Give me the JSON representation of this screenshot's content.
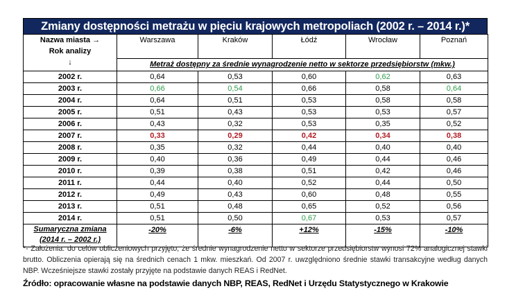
{
  "title": "Zmiany dostępności metrażu w pięciu krajowych metropoliach (2002 r. – 2014 r.)*",
  "header": {
    "corner_line1": "Nazwa miasta →",
    "corner_line2": "Rok analizy",
    "corner_arrow": "↓",
    "cities": [
      "Warszawa",
      "Kraków",
      "Łódź",
      "Wrocław",
      "Poznań"
    ],
    "subtitle": "Metraż dostępny za średnie wynagrodzenie netto w sektorze przedsiębiorstw (mkw.)"
  },
  "rows": [
    {
      "year": "2002 r.",
      "values": [
        "0,64",
        "0,53",
        "0,60",
        "0,62",
        "0,63"
      ],
      "styles": [
        "",
        "",
        "",
        "green",
        ""
      ]
    },
    {
      "year": "2003 r.",
      "values": [
        "0,66",
        "0,54",
        "0,66",
        "0,58",
        "0,64"
      ],
      "styles": [
        "green",
        "green",
        "",
        "",
        "green"
      ]
    },
    {
      "year": "2004 r.",
      "values": [
        "0,64",
        "0,51",
        "0,53",
        "0,58",
        "0,58"
      ],
      "styles": [
        "",
        "",
        "",
        "",
        ""
      ]
    },
    {
      "year": "2005 r.",
      "values": [
        "0,51",
        "0,43",
        "0,53",
        "0,53",
        "0,57"
      ],
      "styles": [
        "",
        "",
        "",
        "",
        ""
      ]
    },
    {
      "year": "2006 r.",
      "values": [
        "0,43",
        "0,32",
        "0,53",
        "0,35",
        "0,52"
      ],
      "styles": [
        "",
        "",
        "",
        "",
        ""
      ]
    },
    {
      "year": "2007 r.",
      "values": [
        "0,33",
        "0,29",
        "0,42",
        "0,34",
        "0,38"
      ],
      "styles": [
        "red",
        "red",
        "red",
        "red",
        "red"
      ]
    },
    {
      "year": "2008 r.",
      "values": [
        "0,35",
        "0,32",
        "0,44",
        "0,40",
        "0,40"
      ],
      "styles": [
        "",
        "",
        "",
        "",
        ""
      ]
    },
    {
      "year": "2009 r.",
      "values": [
        "0,40",
        "0,36",
        "0,49",
        "0,44",
        "0,46"
      ],
      "styles": [
        "",
        "",
        "",
        "",
        ""
      ]
    },
    {
      "year": "2010 r.",
      "values": [
        "0,39",
        "0,38",
        "0,51",
        "0,42",
        "0,46"
      ],
      "styles": [
        "",
        "",
        "",
        "",
        ""
      ]
    },
    {
      "year": "2011 r.",
      "values": [
        "0,44",
        "0,40",
        "0,52",
        "0,44",
        "0,50"
      ],
      "styles": [
        "",
        "",
        "",
        "",
        ""
      ]
    },
    {
      "year": "2012 r.",
      "values": [
        "0,49",
        "0,43",
        "0,60",
        "0,48",
        "0,55"
      ],
      "styles": [
        "",
        "",
        "",
        "",
        ""
      ]
    },
    {
      "year": "2013 r.",
      "values": [
        "0,51",
        "0,48",
        "0,65",
        "0,52",
        "0,56"
      ],
      "styles": [
        "",
        "",
        "",
        "",
        ""
      ]
    },
    {
      "year": "2014 r.",
      "values": [
        "0,51",
        "0,50",
        "0,67",
        "0,53",
        "0,57"
      ],
      "styles": [
        "",
        "",
        "green",
        "",
        ""
      ]
    }
  ],
  "summary": {
    "label_line1": "Sumaryczna zmiana",
    "label_line2": "(2014 r. – 2002 r.)",
    "values": [
      "-20%",
      "-6%",
      "+12%",
      "-15%",
      "-10%"
    ]
  },
  "footnote": "*- Założenia: do celów obliczeniowych przyjęto, że średnie wynagrodzenie netto w sektorze przedsiębiorstw wynosi 72% analogicznej stawki brutto. Obliczenia opierają się na średnich cenach 1 mkw. mieszkań. Od 2007 r. uwzględniono średnie stawki transakcyjne według danych NBP. Wcześniejsze stawki zostały przyjęte na podstawie danych REAS i RedNet.",
  "source": "Źródło: opracowanie własne na podstawie danych NBP, REAS, RedNet i Urzędu Statystycznego w Krakowie",
  "colors": {
    "title_bg": "#12275e",
    "highlight_max": "#2e9a4a",
    "highlight_min": "#b01c24"
  }
}
